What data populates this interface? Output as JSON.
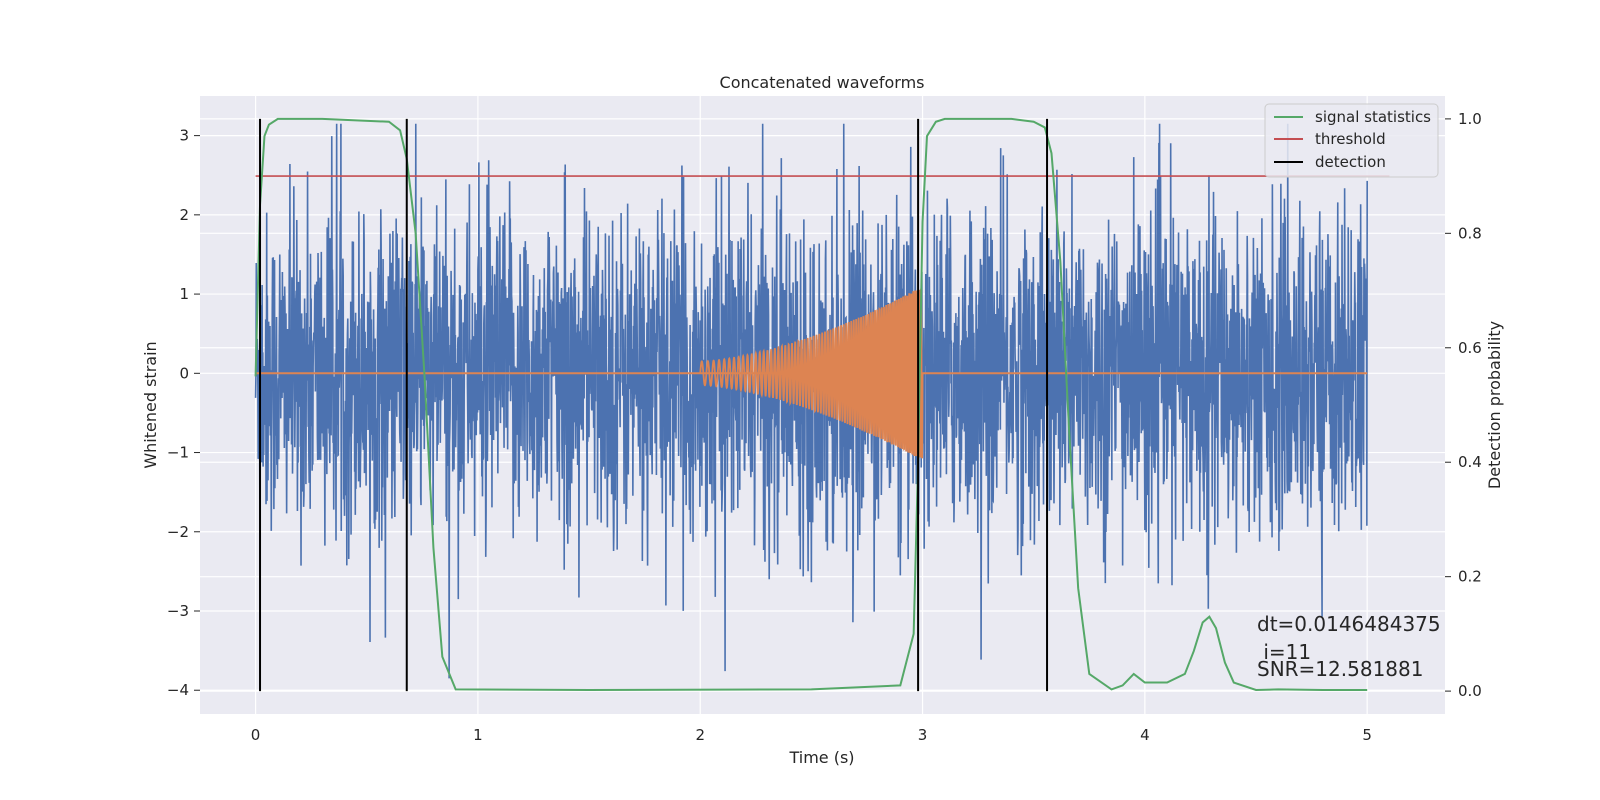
{
  "chart_data": {
    "type": "line",
    "title": "Concatenated waveforms",
    "xlabel": "Time (s)",
    "ylabel": "Whitened strain",
    "y2label": "Detection probability",
    "xlim": [
      -0.25,
      5.35
    ],
    "ylim": [
      -4.3,
      3.5
    ],
    "y2lim": [
      -0.04,
      1.04
    ],
    "xticks": [
      0,
      1,
      2,
      3,
      4,
      5
    ],
    "yticks": [
      -4,
      -3,
      -2,
      -1,
      0,
      1,
      2,
      3
    ],
    "y2ticks": [
      0.0,
      0.2,
      0.4,
      0.6,
      0.8,
      1.0
    ],
    "xtick_labels": [
      "0",
      "1",
      "2",
      "3",
      "4",
      "5"
    ],
    "ytick_labels": [
      "−4",
      "−3",
      "−2",
      "−1",
      "0",
      "1",
      "2",
      "3"
    ],
    "y2tick_labels": [
      "0.0",
      "0.2",
      "0.4",
      "0.6",
      "0.8",
      "1.0"
    ],
    "grid": true,
    "legend_position": "top-right",
    "series": [
      {
        "name": "",
        "axis": "left",
        "color": "#4c72b0",
        "description_kind": "whitened noise strain, roughly ±3 amplitude",
        "x_range": [
          0,
          5
        ],
        "amplitude": 1.0,
        "peak_max": 3.15,
        "peak_min": -3.85
      },
      {
        "name": "",
        "axis": "left",
        "color": "#dd8452",
        "kind": "chirp",
        "x_range": [
          2,
          3
        ],
        "amplitude_start": 0.15,
        "amplitude_end": 1.1,
        "baseline": 0
      },
      {
        "name": "signal statistics",
        "axis": "right",
        "color": "#55a868",
        "x": [
          0.0,
          0.02,
          0.04,
          0.06,
          0.1,
          0.3,
          0.6,
          0.65,
          0.68,
          0.72,
          0.76,
          0.8,
          0.84,
          0.9,
          1.5,
          2.5,
          2.9,
          2.96,
          2.98,
          3.0,
          3.02,
          3.06,
          3.1,
          3.4,
          3.5,
          3.55,
          3.58,
          3.62,
          3.66,
          3.7,
          3.75,
          3.85,
          3.9,
          3.95,
          4.0,
          4.1,
          4.18,
          4.22,
          4.26,
          4.29,
          4.32,
          4.36,
          4.4,
          4.5,
          4.6,
          4.8,
          5.0
        ],
        "y": [
          0.55,
          0.85,
          0.97,
          0.99,
          1.0,
          1.0,
          0.995,
          0.98,
          0.93,
          0.8,
          0.55,
          0.25,
          0.06,
          0.003,
          0.002,
          0.003,
          0.01,
          0.1,
          0.4,
          0.82,
          0.97,
          0.995,
          1.0,
          1.0,
          0.995,
          0.985,
          0.94,
          0.75,
          0.45,
          0.18,
          0.03,
          0.003,
          0.01,
          0.03,
          0.015,
          0.015,
          0.03,
          0.07,
          0.12,
          0.13,
          0.11,
          0.05,
          0.015,
          0.002,
          0.003,
          0.002,
          0.002
        ]
      },
      {
        "name": "threshold",
        "axis": "right",
        "color": "#c44e52",
        "x": [
          0.0,
          5.1
        ],
        "y": [
          0.9,
          0.9
        ]
      },
      {
        "name": "detection",
        "axis": "right",
        "color": "#000000",
        "vertical_lines": [
          0.02,
          0.68,
          2.98,
          3.56
        ],
        "y_range": [
          0.0,
          1.0
        ]
      }
    ],
    "annotations": {
      "dt": "dt=0.0146484375",
      "i": " i=11",
      "snr": "SNR=12.581881"
    }
  }
}
